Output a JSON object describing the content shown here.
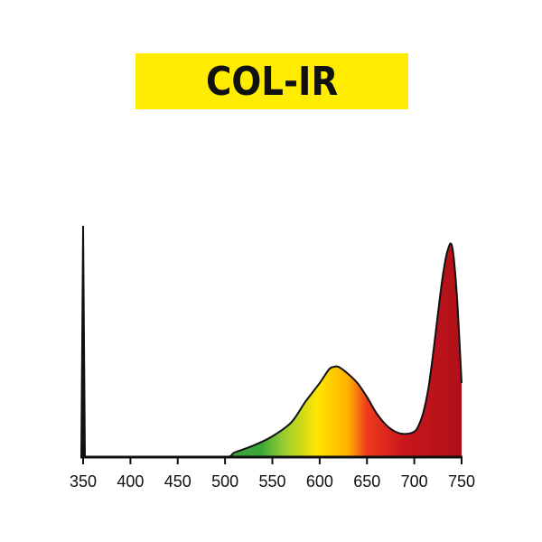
{
  "title": "COL-IR",
  "colors": {
    "banner": "#ffec00",
    "axis": "#111111",
    "spectrum_stops": [
      "#3aa63a",
      "#9acd32",
      "#ffe600",
      "#ffb000",
      "#f03a1e",
      "#c8161c",
      "#b01018"
    ]
  },
  "chart_data": {
    "type": "area",
    "title": "COL-IR",
    "xlabel": "",
    "ylabel": "",
    "xlim": [
      350,
      750
    ],
    "ylim": [
      0,
      1
    ],
    "grid": false,
    "x_ticks": [
      350,
      400,
      450,
      500,
      550,
      600,
      650,
      700,
      750
    ],
    "series": [
      {
        "x": [
          350,
          400,
          450,
          500,
          510,
          530,
          550,
          570,
          585,
          600,
          610,
          615,
          620,
          630,
          640,
          650,
          660,
          670,
          680,
          690,
          700,
          705,
          710,
          715,
          720,
          725,
          730,
          735,
          740,
          745,
          750
        ],
        "y": [
          0.0,
          0.0,
          0.0,
          0.0,
          0.02,
          0.05,
          0.09,
          0.15,
          0.24,
          0.32,
          0.38,
          0.39,
          0.39,
          0.36,
          0.32,
          0.26,
          0.19,
          0.14,
          0.11,
          0.1,
          0.11,
          0.14,
          0.2,
          0.3,
          0.45,
          0.62,
          0.78,
          0.89,
          0.91,
          0.7,
          0.32
        ]
      }
    ]
  }
}
